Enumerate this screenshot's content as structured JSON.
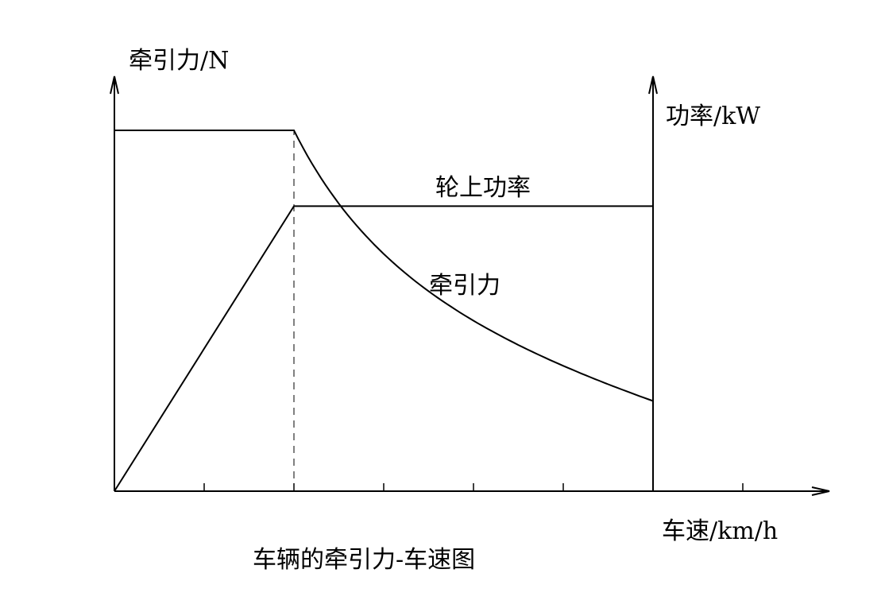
{
  "chart_data": {
    "type": "line",
    "title": "车辆的牵引力-车速图",
    "xlabel": "车速/km/h",
    "ylabel_left": "牵引力/N",
    "ylabel_right": "功率/kW",
    "xlim": [
      0,
      8
    ],
    "ylim": [
      0,
      100
    ],
    "x_ticks": [
      1,
      2,
      3,
      4,
      5,
      6,
      7
    ],
    "base_speed_marker": 2,
    "series": [
      {
        "name": "牵引力",
        "axis": "left",
        "shape": "constant then hyperbolic (constant power)",
        "x": [
          0,
          2,
          2.5,
          3,
          3.5,
          4,
          4.5,
          5,
          5.5,
          6
        ],
        "y": [
          100,
          100,
          80,
          66.7,
          57.1,
          50,
          44.4,
          40,
          36.4,
          25
        ]
      },
      {
        "name": "轮上功率",
        "axis": "right",
        "shape": "linear rise then constant",
        "x": [
          0,
          2,
          6
        ],
        "y": [
          0,
          79,
          79
        ]
      }
    ],
    "grid": false,
    "legend": "none"
  },
  "labels": {
    "y_left": "牵引力/N",
    "y_right": "功率/kW",
    "x": "车速/km/h",
    "power_series": "轮上功率",
    "force_series": "牵引力",
    "title": "车辆的牵引力-车速图"
  }
}
